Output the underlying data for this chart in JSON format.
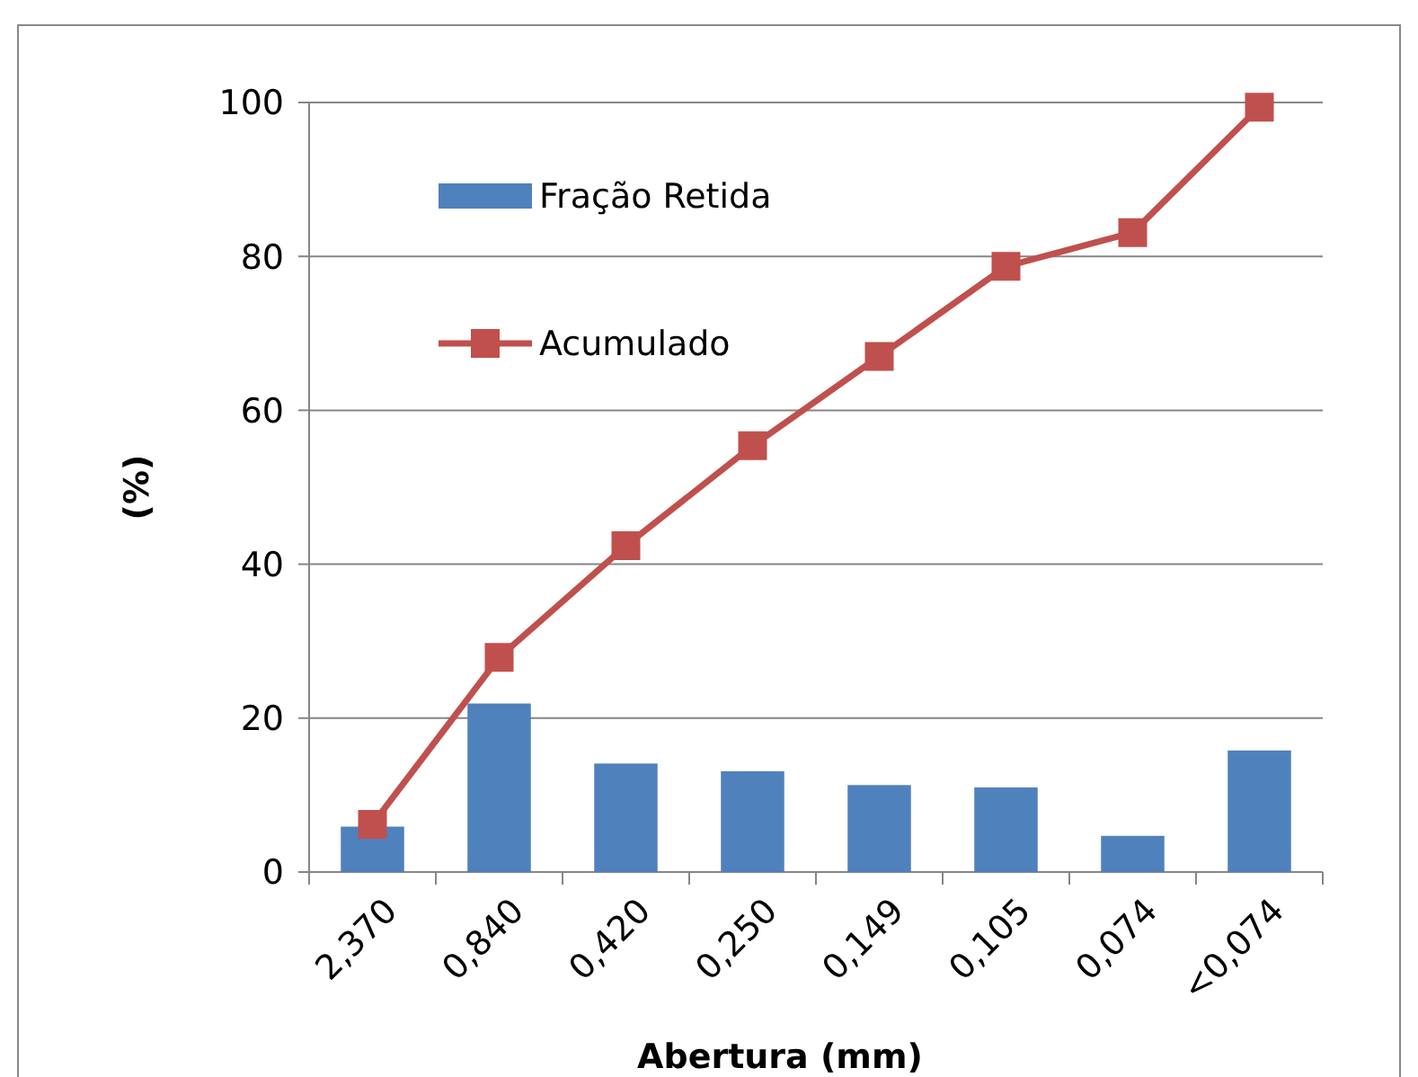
{
  "chart_data": {
    "type": "bar",
    "xlabel": "Abertura (mm)",
    "ylabel": "(%)",
    "categories": [
      "2,370",
      "0,840",
      "0,420",
      "0,250",
      "0,149",
      "0,105",
      "0,074",
      "<0,074"
    ],
    "series": [
      {
        "name": "Fração Retida",
        "color": "#4f81bd",
        "values": [
          5.9,
          21.9,
          14.1,
          13.1,
          11.3,
          11.0,
          4.7,
          15.8
        ]
      },
      {
        "name": "Acumulado",
        "type": "line",
        "color": "#c0504d",
        "marker": "square",
        "values": [
          6.2,
          27.9,
          42.4,
          55.4,
          67.0,
          78.7,
          83.1,
          99.4
        ]
      }
    ],
    "ylim": [
      0,
      100
    ],
    "yticks": [
      0,
      20,
      40,
      60,
      80,
      100
    ],
    "grid": "y",
    "legend": "top left"
  }
}
